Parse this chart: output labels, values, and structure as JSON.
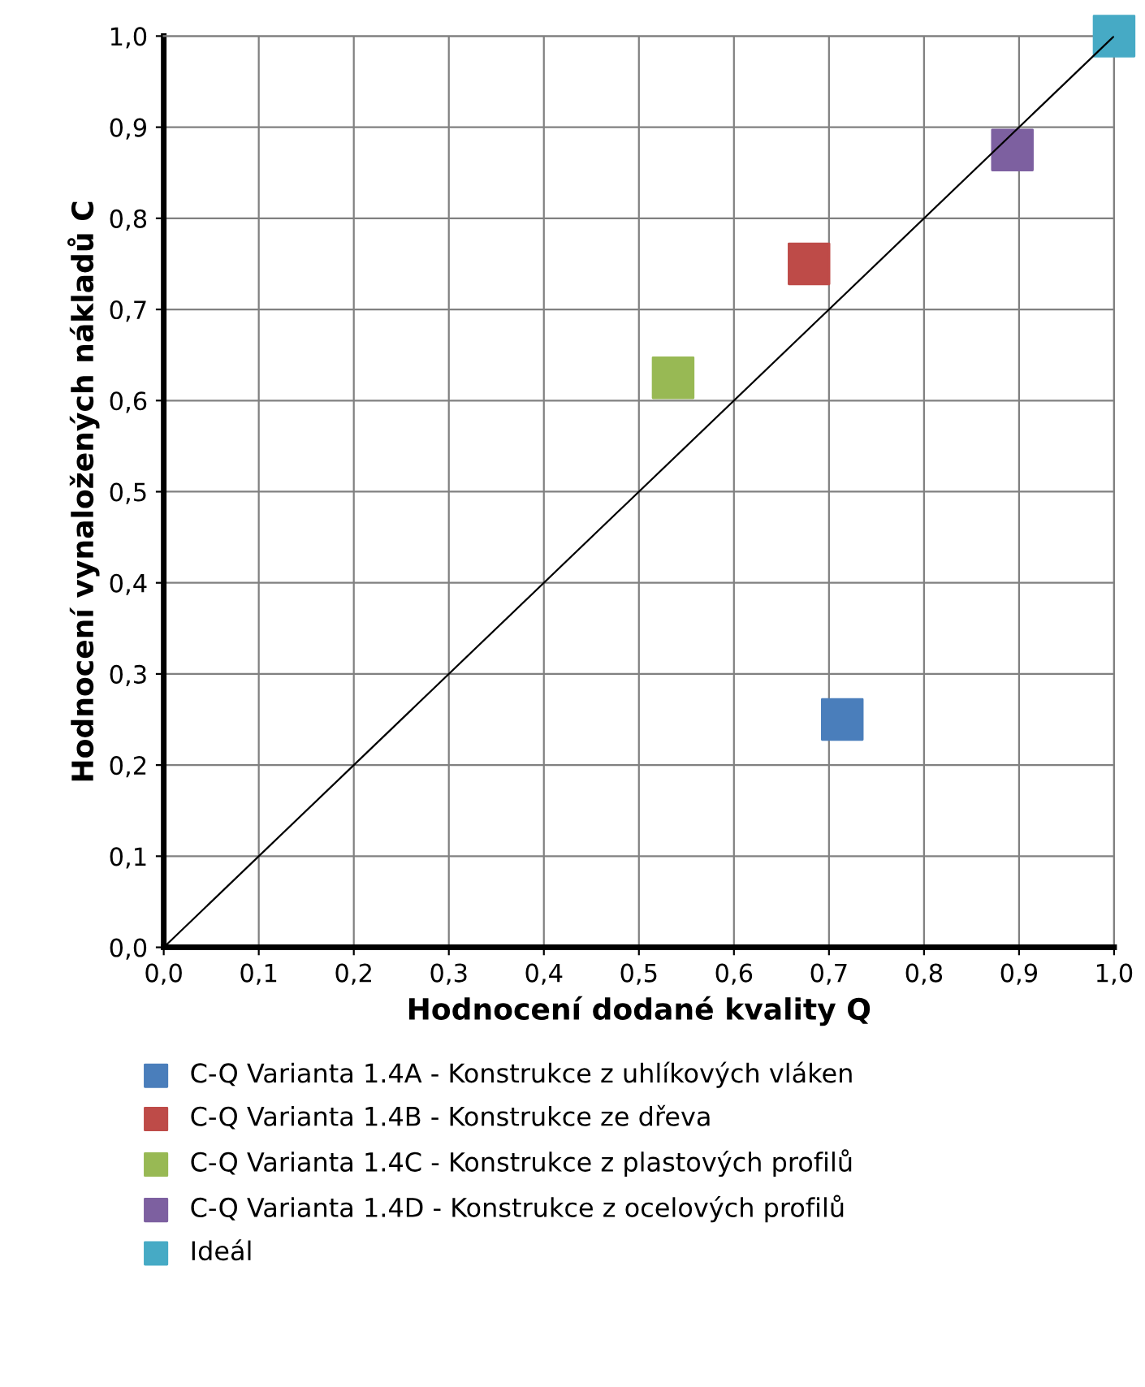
{
  "chart_data": {
    "type": "scatter",
    "xlabel": "Hodnocení dodané kvality Q",
    "ylabel": "Hodnocení vynaložených nákladů C",
    "series": [
      {
        "name": "C-Q Varianta 1.4A - Konstrukce z uhlíkových vláken",
        "color": "#4a7ebb",
        "x": [
          0.714
        ],
        "values": [
          0.25
        ]
      },
      {
        "name": "C-Q Varianta 1.4B - Konstrukce ze dřeva",
        "color": "#be4b48",
        "x": [
          0.679
        ],
        "values": [
          0.75
        ]
      },
      {
        "name": "C-Q Varianta 1.4C - Konstrukce z plastových profilů",
        "color": "#98b954",
        "x": [
          0.536
        ],
        "values": [
          0.625
        ]
      },
      {
        "name": "C-Q Varianta 1.4D - Konstrukce z ocelových profilů",
        "color": "#7d60a0",
        "x": [
          0.893
        ],
        "values": [
          0.875
        ]
      },
      {
        "name": "Ideál",
        "color": "#46aac5",
        "x": [
          1.0
        ],
        "values": [
          1.0
        ]
      },
      {
        "type": "line",
        "color": "#000000",
        "x": [
          0,
          1
        ],
        "values": [
          0,
          1
        ],
        "marker": "none"
      }
    ],
    "xlim": [
      0,
      1
    ],
    "ylim": [
      0,
      1
    ],
    "xticks": [
      {
        "value": 0,
        "label": "0,0"
      },
      {
        "value": 0.1,
        "label": "0,1"
      },
      {
        "value": 0.2,
        "label": "0,2"
      },
      {
        "value": 0.3,
        "label": "0,3"
      },
      {
        "value": 0.4,
        "label": "0,4"
      },
      {
        "value": 0.5,
        "label": "0,5"
      },
      {
        "value": 0.6,
        "label": "0,6"
      },
      {
        "value": 0.7,
        "label": "0,7"
      },
      {
        "value": 0.8,
        "label": "0,8"
      },
      {
        "value": 0.9,
        "label": "0,9"
      },
      {
        "value": 1,
        "label": "1,0"
      }
    ],
    "yticks": [
      {
        "value": 0,
        "label": "0,0"
      },
      {
        "value": 0.1,
        "label": "0,1"
      },
      {
        "value": 0.2,
        "label": "0,2"
      },
      {
        "value": 0.3,
        "label": "0,3"
      },
      {
        "value": 0.4,
        "label": "0,4"
      },
      {
        "value": 0.5,
        "label": "0,5"
      },
      {
        "value": 0.6,
        "label": "0,6"
      },
      {
        "value": 0.7,
        "label": "0,7"
      },
      {
        "value": 0.8,
        "label": "0,8"
      },
      {
        "value": 0.9,
        "label": "0,9"
      },
      {
        "value": 1,
        "label": "1,0"
      }
    ],
    "grid": true,
    "legend": "bottom",
    "marker": "square"
  }
}
